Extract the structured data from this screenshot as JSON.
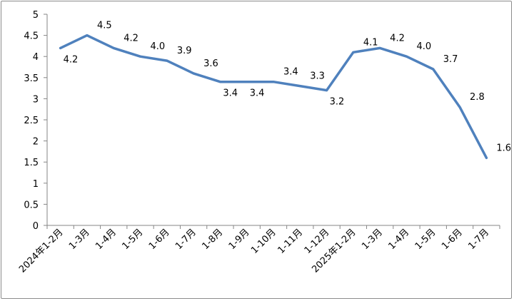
{
  "chart_data": {
    "type": "line",
    "title": "",
    "xlabel": "",
    "ylabel": "",
    "ylim": [
      0,
      5
    ],
    "yticks": [
      "0",
      "0.5",
      "1",
      "1.5",
      "2",
      "2.5",
      "3",
      "3.5",
      "4",
      "4.5",
      "5"
    ],
    "yticks_values": [
      0,
      0.5,
      1,
      1.5,
      2,
      2.5,
      3,
      3.5,
      4,
      4.5,
      5
    ],
    "grid": false,
    "legend": "none",
    "categories": [
      "2024年1-2月",
      "1-3月",
      "1-4月",
      "1-5月",
      "1-6月",
      "1-7月",
      "1-8月",
      "1-9月",
      "1-10月",
      "1-11月",
      "1-12月",
      "2025年1-2月",
      "1-3月",
      "1-4月",
      "1-5月",
      "1-6月",
      "1-7月"
    ],
    "series": [
      {
        "values": [
          4.2,
          4.5,
          4.2,
          4.0,
          3.9,
          3.6,
          3.4,
          3.4,
          3.4,
          3.3,
          3.2,
          4.1,
          4.2,
          4.0,
          3.7,
          2.8,
          1.6
        ],
        "labels": [
          "4.2",
          "4.5",
          "4.2",
          "4.0",
          "3.9",
          "3.6",
          "3.4",
          "3.4",
          "3.4",
          "3.3",
          "3.2",
          "4.1",
          "4.2",
          "4.0",
          "3.7",
          "2.8",
          "1.6"
        ],
        "color": "#4f81bd"
      }
    ]
  }
}
